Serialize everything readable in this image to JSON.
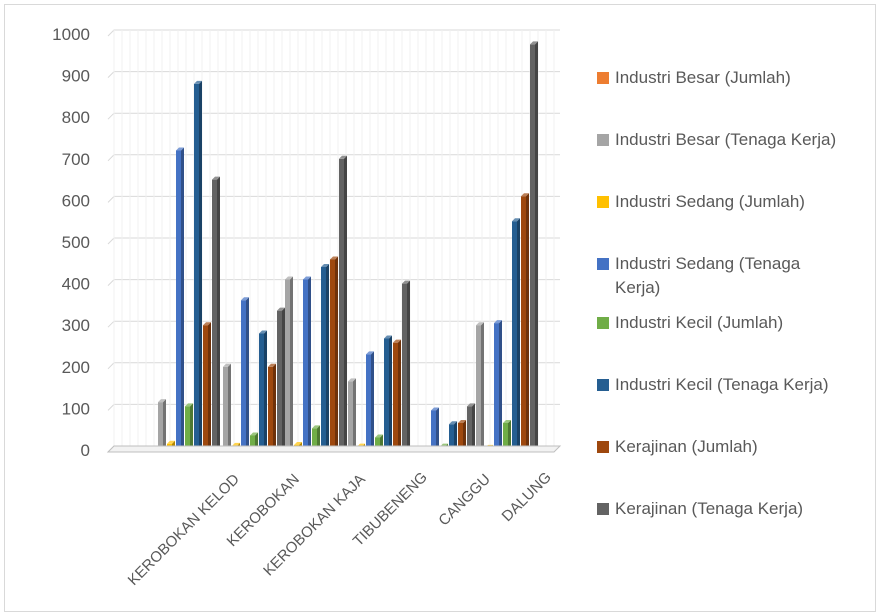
{
  "chart_data": {
    "type": "bar",
    "variant": "3d-clustered-column",
    "title": "",
    "xlabel": "",
    "ylabel": "",
    "ylim": [
      0,
      1000
    ],
    "yticks": [
      0,
      100,
      200,
      300,
      400,
      500,
      600,
      700,
      800,
      900,
      1000
    ],
    "grid": true,
    "legend_position": "right",
    "categories": [
      "KEROBOKAN KELOD",
      "KEROBOKAN",
      "KEROBOKAN KAJA",
      "TIBUBENENG",
      "CANGGU",
      "DALUNG"
    ],
    "series": [
      {
        "name": "Industri Besar (Jumlah)",
        "color": "#ED7D31",
        "values": [
          0,
          2,
          3,
          3,
          0,
          2
        ]
      },
      {
        "name": "Industri Besar (Tenaga Kerja)",
        "color": "#A5A5A5",
        "values": [
          115,
          200,
          410,
          165,
          0,
          300
        ]
      },
      {
        "name": "Industri Sedang (Jumlah)",
        "color": "#FFC000",
        "values": [
          15,
          10,
          12,
          8,
          3,
          5
        ]
      },
      {
        "name": "Industri Sedang (Tenaga\nKerja)",
        "color": "#4472C4",
        "values": [
          720,
          360,
          410,
          230,
          95,
          305
        ]
      },
      {
        "name": "Industri Kecil (Jumlah)",
        "color": "#70AD47",
        "values": [
          105,
          35,
          52,
          30,
          8,
          65
        ]
      },
      {
        "name": "Industri Kecil (Tenaga Kerja)",
        "color": "#255E91",
        "values": [
          880,
          280,
          440,
          268,
          62,
          550
        ]
      },
      {
        "name": "Kerajinan (Jumlah)",
        "color": "#9E480E",
        "values": [
          300,
          200,
          458,
          258,
          65,
          610
        ]
      },
      {
        "name": "Kerajinan (Tenaga Kerja)",
        "color": "#636363",
        "values": [
          650,
          335,
          700,
          400,
          105,
          975
        ]
      }
    ]
  }
}
